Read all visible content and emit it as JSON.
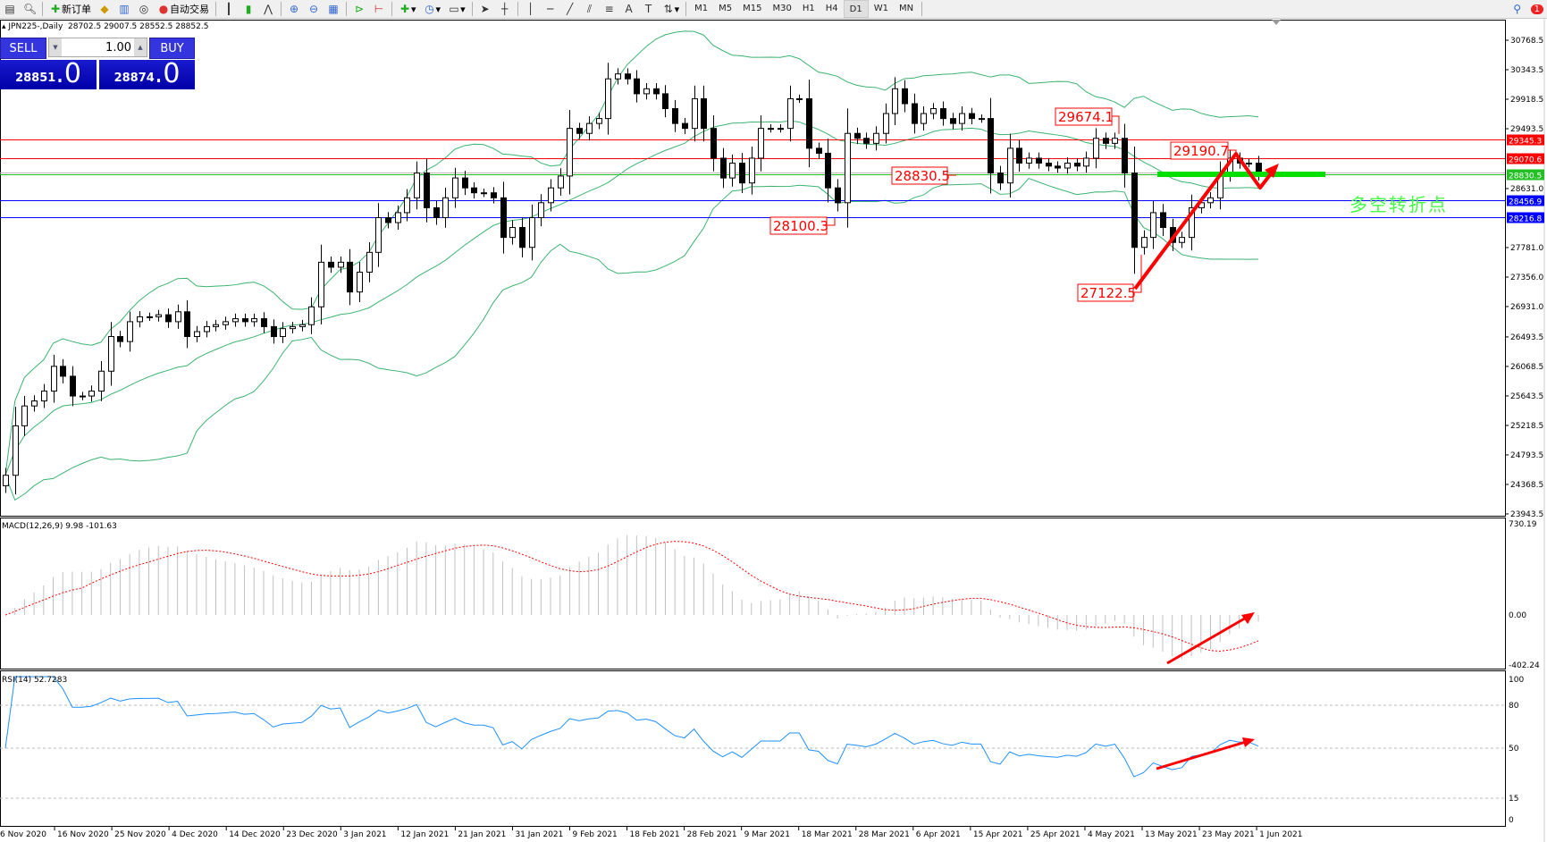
{
  "toolbar": {
    "new_order": "新订单",
    "auto_trading": "自动交易",
    "timeframes": [
      "M1",
      "M5",
      "M15",
      "M30",
      "H1",
      "H4",
      "D1",
      "W1",
      "MN"
    ],
    "active_timeframe": "D1",
    "notification_count": "1"
  },
  "chart_header": "JPN225-,Daily  28702.5 29007.5 28552.5 28852.5",
  "trade_panel": {
    "sell_label": "SELL",
    "buy_label": "BUY",
    "lot": "1.00",
    "sell_price_main": "28851",
    "sell_price_frac": ".0",
    "buy_price_main": "28874",
    "buy_price_frac": ".0"
  },
  "colors": {
    "bollinger": "#3cb371",
    "bear": "#000000",
    "bull": "#ffffff",
    "resistance": "#ff0000",
    "support": "#0000ff",
    "pivot": "#00e000",
    "macd_signal": "#ff0000",
    "macd_hist": "#c0c0c0",
    "rsi": "#1e90ff",
    "annotation": "#ff0000"
  },
  "chart_data": {
    "type": "candlestick",
    "symbol": "JPN225-",
    "timeframe": "Daily",
    "closes": [
      24500,
      25213,
      25499,
      25571,
      25713,
      26070,
      25927,
      25642,
      25642,
      25713,
      26000,
      26499,
      26427,
      26713,
      26784,
      26784,
      26813,
      26713,
      26856,
      26499,
      26570,
      26642,
      26670,
      26713,
      26756,
      26713,
      26756,
      26642,
      26499,
      26613,
      26642,
      26670,
      26927,
      27570,
      27498,
      27570,
      27141,
      27427,
      27712,
      28212,
      28141,
      28284,
      28498,
      28855,
      28355,
      28212,
      28498,
      28784,
      28641,
      28570,
      28570,
      28498,
      27927,
      28070,
      27784,
      28212,
      28427,
      28641,
      28812,
      29498,
      29426,
      29569,
      29640,
      30212,
      30283,
      30212,
      29997,
      30069,
      29997,
      29783,
      29569,
      29498,
      29926,
      29498,
      29069,
      28784,
      28998,
      28712,
      29069,
      29498,
      29498,
      29498,
      29926,
      29926,
      29212,
      29140,
      28641,
      28427,
      29426,
      29355,
      29283,
      29426,
      29712,
      30069,
      29854,
      29569,
      29712,
      29783,
      29640,
      29569,
      29712,
      29640,
      29640,
      28855,
      28712,
      29212,
      28998,
      29069,
      28998,
      28955,
      28927,
      28998,
      28955,
      29069,
      29355,
      29283,
      29355,
      28855,
      27784,
      27927,
      28284,
      28070,
      27855,
      27927,
      28355,
      28427,
      28498,
      28855,
      29069,
      28998,
      28998,
      28852.5
    ],
    "y_ticks": [
      "30768.5",
      "30343.5",
      "29918.5",
      "29493.5",
      "28631.0",
      "27781.0",
      "27356.0",
      "26931.0",
      "26493.5",
      "26068.5",
      "25643.5",
      "25218.5",
      "24793.5",
      "24368.5",
      "23943.5"
    ],
    "y_tick_values": [
      30768.5,
      30343.5,
      29918.5,
      29493.5,
      28631.0,
      27781.0,
      27356.0,
      26931.0,
      26493.5,
      26068.5,
      25643.5,
      25218.5,
      24793.5,
      24368.5,
      23943.5
    ],
    "ylim": [
      23943.5,
      30768.5
    ],
    "x_ticks": [
      "6 Nov 2020",
      "16 Nov 2020",
      "25 Nov 2020",
      "4 Dec 2020",
      "14 Dec 2020",
      "23 Dec 2020",
      "3 Jan 2021",
      "12 Jan 2021",
      "21 Jan 2021",
      "31 Jan 2021",
      "9 Feb 2021",
      "18 Feb 2021",
      "28 Feb 2021",
      "9 Mar 2021",
      "18 Mar 2021",
      "28 Mar 2021",
      "6 Apr 2021",
      "15 Apr 2021",
      "25 Apr 2021",
      "4 May 2021",
      "13 May 2021",
      "23 May 2021",
      "1 Jun 2021"
    ],
    "horizontal_lines": [
      {
        "value": 29345.3,
        "label": "29345.3",
        "color": "#ff0000"
      },
      {
        "value": 29070.6,
        "label": "29070.6",
        "color": "#ff0000"
      },
      {
        "value": 28830.5,
        "label": "28830.5",
        "color": "#22c022"
      },
      {
        "value": 28456.9,
        "label": "28456.9",
        "color": "#0000ff"
      },
      {
        "value": 28216.8,
        "label": "28216.8",
        "color": "#0000ff"
      }
    ],
    "price_annotations": [
      "29674.1",
      "29190.7",
      "28830.5",
      "28100.3",
      "27122.5"
    ],
    "pivot_text": "多空转折点",
    "indicators": {
      "bollinger": {
        "period": 20,
        "deviation": 2
      },
      "macd": {
        "label": "MACD(12,26,9) 9.98 -101.63",
        "y_ticks": [
          "730.19",
          "0.00",
          "-402.24"
        ],
        "ylim": [
          -402.24,
          730.19
        ]
      },
      "rsi": {
        "label": "RSI(14) 52.7283",
        "y_ticks": [
          "100",
          "80",
          "50",
          "15",
          "0"
        ],
        "levels": [
          80,
          50,
          15
        ],
        "ylim": [
          0,
          100
        ]
      }
    }
  }
}
